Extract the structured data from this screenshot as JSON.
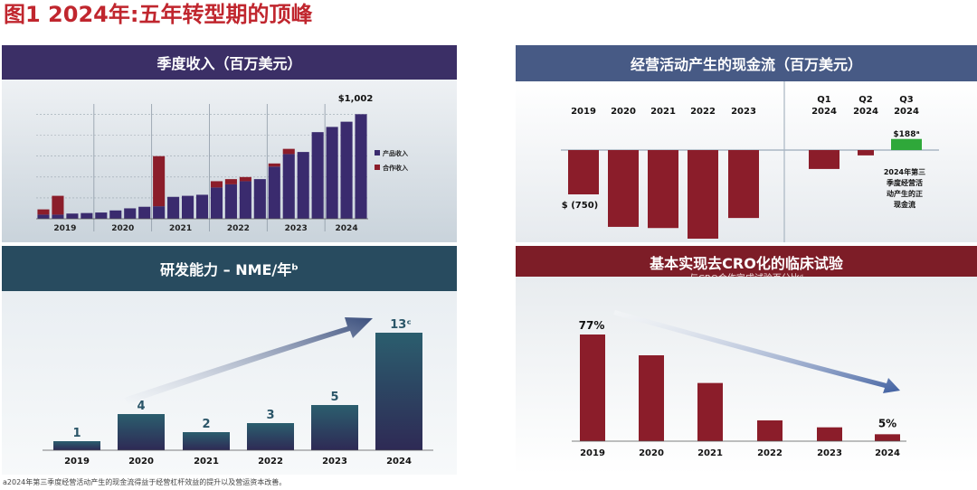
{
  "figure_title": "图1   2024年:五年转型期的顶峰",
  "footnote": "a2024年第三季度经营活动产生的现金流得益于经营杠杆效益的提升以及营运资本改善。",
  "colors": {
    "title_red": "#c0262e",
    "navy_banner": "#3b2f66",
    "teal_banner": "#284b5f",
    "slate_banner": "#475a85",
    "maroon_banner": "#7d1d27",
    "product_bar": "#3a2b6e",
    "collab_bar": "#8b1d2a",
    "cash_bar": "#8b1d2a",
    "positive_bar": "#2fa83a",
    "nme_bar": "#2a5568",
    "cro_bar": "#8b1d2a"
  },
  "chart_data": [
    {
      "id": "quarterly_revenue",
      "type": "bar",
      "stacked": true,
      "title": "季度收入（百万美元）",
      "categories": [
        "2019Q1",
        "2019Q2",
        "2019Q3",
        "2019Q4",
        "2020Q1",
        "2020Q2",
        "2020Q3",
        "2020Q4",
        "2021Q1",
        "2021Q2",
        "2021Q3",
        "2021Q4",
        "2022Q1",
        "2022Q2",
        "2022Q3",
        "2022Q4",
        "2023Q1",
        "2023Q2",
        "2023Q3",
        "2023Q4",
        "2024Q1",
        "2024Q2",
        "2024Q3"
      ],
      "year_labels": [
        "2019",
        "2020",
        "2021",
        "2022",
        "2023",
        "2024"
      ],
      "series": [
        {
          "name": "产品收入",
          "values": [
            40,
            40,
            50,
            55,
            60,
            80,
            100,
            115,
            120,
            210,
            220,
            230,
            300,
            330,
            360,
            380,
            500,
            620,
            640,
            830,
            880,
            930,
            1002
          ]
        },
        {
          "name": "合作收入",
          "values": [
            50,
            180,
            0,
            0,
            0,
            0,
            0,
            0,
            0,
            0,
            0,
            0,
            0,
            0,
            0,
            0,
            0,
            0,
            0,
            0,
            0,
            0,
            0
          ]
        },
        {
          "name": "合作收入",
          "values": [
            0,
            0,
            0,
            0,
            0,
            0,
            0,
            0,
            480,
            0,
            0,
            0,
            60,
            50,
            40,
            0,
            30,
            50,
            0,
            0,
            0,
            0,
            0
          ]
        }
      ],
      "legend": [
        "产品收入",
        "合作收入"
      ],
      "annotation": "$1,002",
      "ylim": [
        0,
        1100
      ]
    },
    {
      "id": "operating_cash_flow",
      "type": "bar",
      "title": "经营活动产生的现金流（百万美元）",
      "categories": [
        "2019",
        "2020",
        "2021",
        "2022",
        "2023",
        "Q1\n2024",
        "Q2\n2024",
        "Q3\n2024"
      ],
      "category_lines": [
        [
          "2019"
        ],
        [
          "2020"
        ],
        [
          "2021"
        ],
        [
          "2022"
        ],
        [
          "2023"
        ],
        [
          "Q1",
          "2024"
        ],
        [
          "Q2",
          "2024"
        ],
        [
          "Q3",
          "2024"
        ]
      ],
      "values": [
        -750,
        -1300,
        -1320,
        -1500,
        -1150,
        -320,
        -90,
        188
      ],
      "data_labels": [
        "$ (750)",
        "",
        "",
        "",
        "",
        "",
        "",
        "$188ᵃ"
      ],
      "annotation": [
        "2024年第三",
        "季度经营活",
        "动产生的正",
        "现金流"
      ],
      "ylim": [
        -1550,
        250
      ]
    },
    {
      "id": "rd_capability",
      "type": "bar",
      "title": "研发能力 – NME/年ᵇ",
      "categories": [
        "2019",
        "2020",
        "2021",
        "2022",
        "2023",
        "2024"
      ],
      "values": [
        1,
        4,
        2,
        3,
        5,
        13
      ],
      "data_labels": [
        "1",
        "4",
        "2",
        "3",
        "5",
        "13ᶜ"
      ],
      "ylim": [
        0,
        14
      ]
    },
    {
      "id": "cro_trials",
      "type": "bar",
      "title": "基本实现去CRO化的临床试验",
      "subtitle": "与CRO合作完成试验百分比ᵈ",
      "categories": [
        "2019",
        "2020",
        "2021",
        "2022",
        "2023",
        "2024"
      ],
      "values": [
        77,
        62,
        42,
        15,
        10,
        5
      ],
      "data_labels": [
        "77%",
        "",
        "",
        "",
        "",
        "5%"
      ],
      "ylim": [
        0,
        85
      ]
    }
  ]
}
